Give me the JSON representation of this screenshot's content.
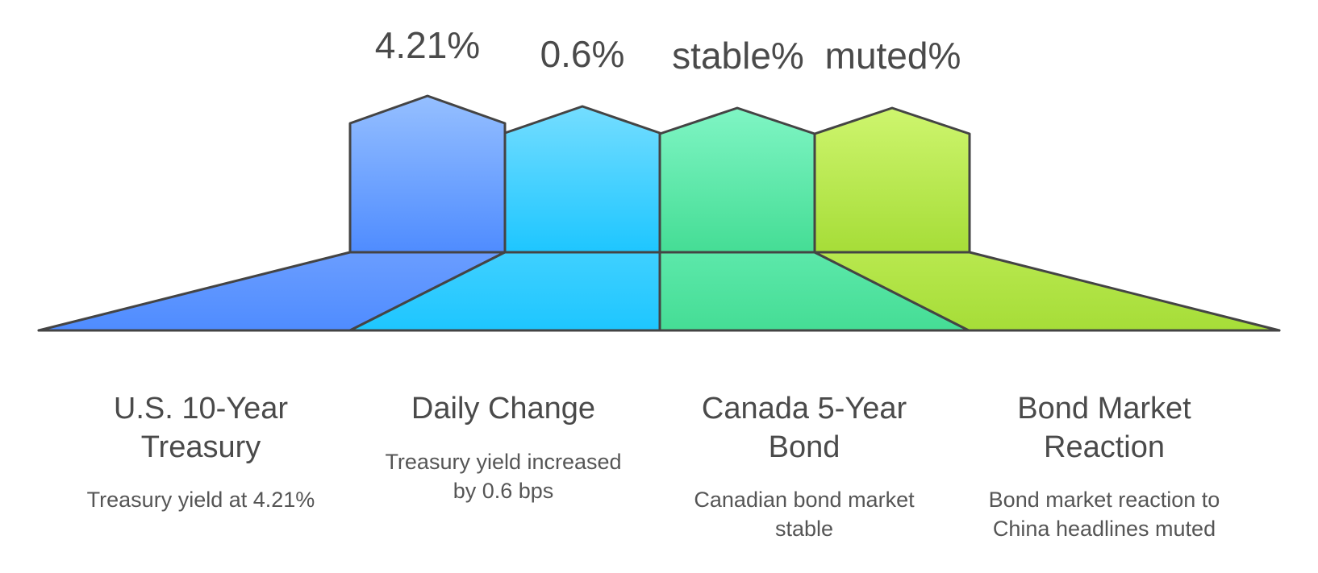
{
  "items": [
    {
      "value": "4.21%",
      "title_line1": "U.S. 10-Year",
      "title_line2": "Treasury",
      "desc_line1": "Treasury yield at 4.21%",
      "desc_line2": ""
    },
    {
      "value": "0.6%",
      "title_line1": "Daily Change",
      "title_line2": "",
      "desc_line1": "Treasury yield increased",
      "desc_line2": "by 0.6 bps"
    },
    {
      "value": "stable%",
      "title_line1": "Canada 5-Year",
      "title_line2": "Bond",
      "desc_line1": "Canadian bond market",
      "desc_line2": "stable"
    },
    {
      "value": "muted%",
      "title_line1": "Bond Market",
      "title_line2": "Reaction",
      "desc_line1": "Bond market reaction to",
      "desc_line2": "China headlines muted"
    }
  ],
  "colors": {
    "outline": "#444444",
    "item1_top": "#95bfff",
    "item1_bottom": "#4f8cff",
    "item2_top": "#74ddff",
    "item2_bottom": "#1ec6ff",
    "item3_top": "#7ff5c4",
    "item3_bottom": "#45dd95",
    "item4_top": "#cef56e",
    "item4_bottom": "#a6dd38"
  }
}
